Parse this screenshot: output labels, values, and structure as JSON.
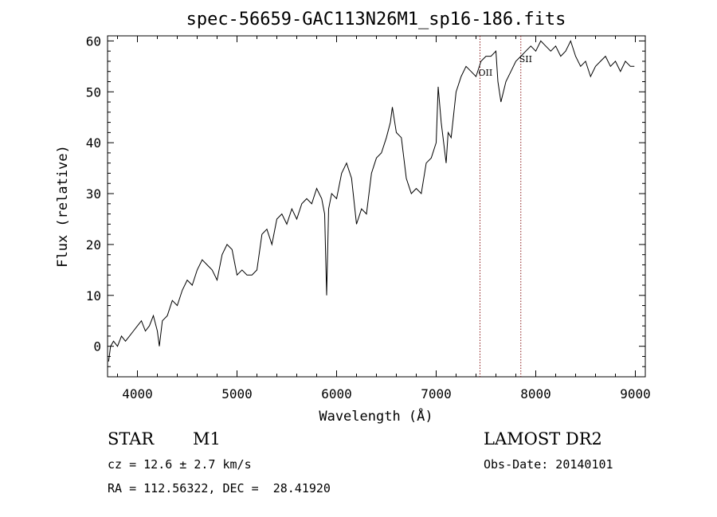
{
  "chart_data": {
    "type": "line",
    "title": "spec-56659-GAC113N26M1_sp16-186.fits",
    "xlabel": "Wavelength (Å)",
    "ylabel": "Flux (relative)",
    "xlim": [
      3700,
      9100
    ],
    "ylim": [
      -6,
      61
    ],
    "xticks": [
      4000,
      5000,
      6000,
      7000,
      8000,
      9000
    ],
    "yticks": [
      0,
      10,
      20,
      30,
      40,
      50,
      60
    ],
    "grid": false,
    "line_color": "#000000",
    "marker_color": "#8b1a1a",
    "markers": [
      {
        "label": "OII",
        "x": 7440
      },
      {
        "label": "SII",
        "x": 7850
      }
    ],
    "series": [
      {
        "x": [
          3710,
          3730,
          3760,
          3800,
          3840,
          3880,
          3920,
          3960,
          4000,
          4040,
          4080,
          4120,
          4160,
          4200,
          4220,
          4250,
          4300,
          4350,
          4400,
          4450,
          4500,
          4550,
          4600,
          4650,
          4700,
          4750,
          4800,
          4850,
          4900,
          4950,
          5000,
          5050,
          5100,
          5150,
          5200,
          5250,
          5300,
          5350,
          5400,
          5450,
          5500,
          5550,
          5600,
          5650,
          5700,
          5750,
          5800,
          5850,
          5880,
          5900,
          5920,
          5950,
          6000,
          6050,
          6100,
          6150,
          6200,
          6250,
          6300,
          6350,
          6400,
          6450,
          6500,
          6540,
          6560,
          6600,
          6650,
          6700,
          6750,
          6800,
          6850,
          6900,
          6950,
          7000,
          7020,
          7050,
          7100,
          7120,
          7150,
          7200,
          7250,
          7300,
          7350,
          7400,
          7450,
          7500,
          7550,
          7600,
          7620,
          7650,
          7700,
          7750,
          7800,
          7850,
          7900,
          7950,
          8000,
          8050,
          8100,
          8150,
          8200,
          8250,
          8300,
          8350,
          8400,
          8450,
          8500,
          8550,
          8600,
          8650,
          8700,
          8750,
          8800,
          8850,
          8900,
          8950,
          8990
        ],
        "y": [
          -3,
          0,
          1,
          0,
          2,
          1,
          2,
          3,
          4,
          5,
          3,
          4,
          6,
          3,
          0,
          5,
          6,
          9,
          8,
          11,
          13,
          12,
          15,
          17,
          16,
          15,
          13,
          18,
          20,
          19,
          14,
          15,
          14,
          14,
          15,
          22,
          23,
          20,
          25,
          26,
          24,
          27,
          25,
          28,
          29,
          28,
          31,
          29,
          26,
          10,
          27,
          30,
          29,
          34,
          36,
          33,
          24,
          27,
          26,
          34,
          37,
          38,
          41,
          44,
          47,
          42,
          41,
          33,
          30,
          31,
          30,
          36,
          37,
          40,
          51,
          44,
          36,
          42,
          41,
          50,
          53,
          55,
          54,
          53,
          56,
          57,
          57,
          58,
          52,
          48,
          52,
          54,
          56,
          57,
          58,
          59,
          58,
          60,
          59,
          58,
          59,
          57,
          58,
          60,
          57,
          55,
          56,
          53,
          55,
          56,
          57,
          55,
          56,
          54,
          56,
          55,
          55
        ]
      }
    ]
  },
  "info": {
    "object_class": "STAR",
    "subclass": "M1",
    "survey": "LAMOST DR2",
    "redshift": "cz = 12.6 ± 2.7 km/s",
    "obs_date": "Obs-Date: 20140101",
    "coordinates": "RA = 112.56322, DEC =  28.41920"
  }
}
